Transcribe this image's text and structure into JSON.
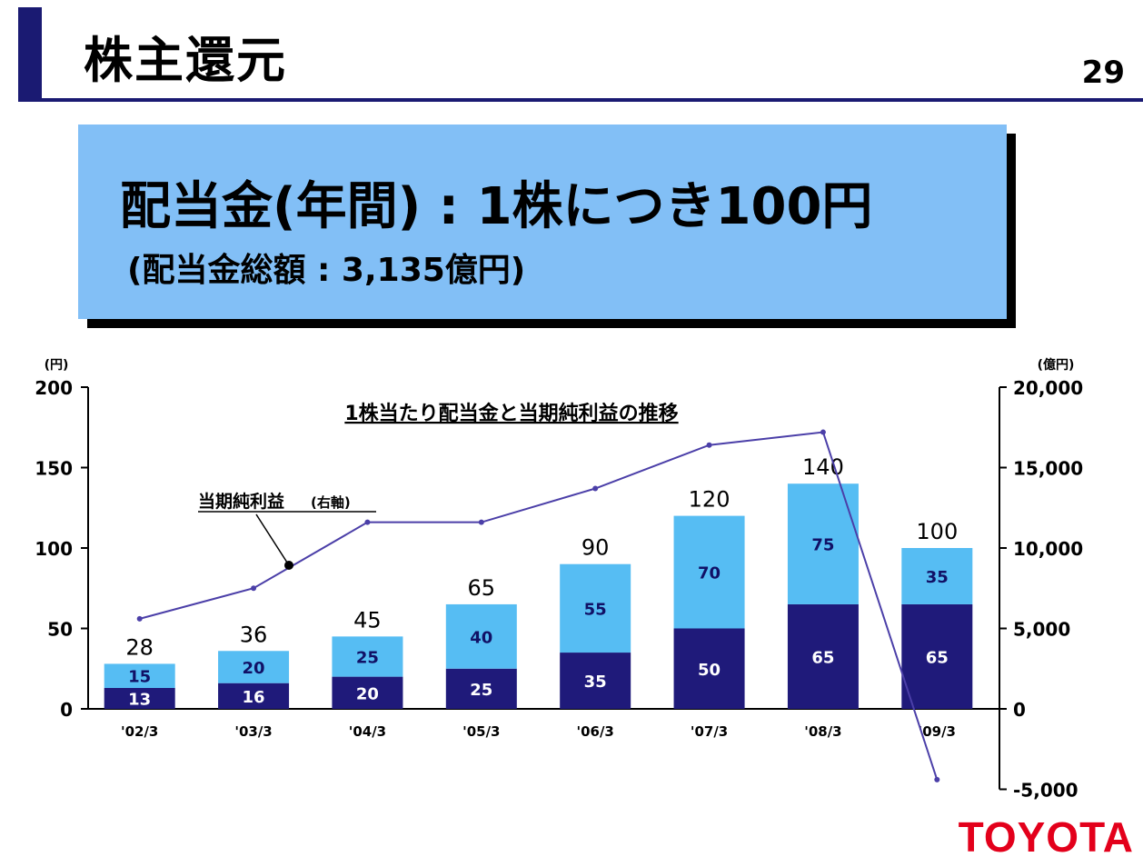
{
  "header": {
    "title": "株主還元",
    "page_number": "29"
  },
  "banner": {
    "main": "配当金(年間) : 1株につき100円",
    "sub": "(配当金総額 : 3,135億円)"
  },
  "logo": "TOYOTA",
  "chart_data": {
    "type": "bar",
    "title": "1株当たり配当金と当期純利益の推移",
    "left_unit": "(円)",
    "right_unit": "(億円)",
    "categories": [
      "'02/3",
      "'03/3",
      "'04/3",
      "'05/3",
      "'06/3",
      "'07/3",
      "'08/3",
      "'09/3"
    ],
    "left_ylim": [
      0,
      200
    ],
    "left_ticks": [
      "0",
      "50",
      "100",
      "150",
      "200"
    ],
    "right_ylim": [
      -5000,
      20000
    ],
    "right_ticks": [
      "-5,000",
      "0",
      "5,000",
      "10,000",
      "15,000",
      "20,000"
    ],
    "stacked_series": [
      {
        "values": [
          13,
          16,
          20,
          25,
          35,
          50,
          65,
          65
        ],
        "color": "#1f1a7a"
      },
      {
        "values": [
          15,
          20,
          25,
          40,
          55,
          70,
          75,
          35
        ],
        "color": "#56bdf3"
      }
    ],
    "totals": [
      28,
      36,
      45,
      65,
      90,
      120,
      140,
      100
    ],
    "line_series": {
      "name": "当期純利益",
      "axis_label": "(右軸)",
      "values": [
        5600,
        7500,
        11600,
        11600,
        13700,
        16400,
        17200,
        -4400
      ],
      "color": "#4b3fa8"
    },
    "grid": false,
    "colors": {
      "bar_lower": "#1f1a7a",
      "bar_upper": "#56bdf3",
      "line": "#4b3fa8"
    }
  }
}
